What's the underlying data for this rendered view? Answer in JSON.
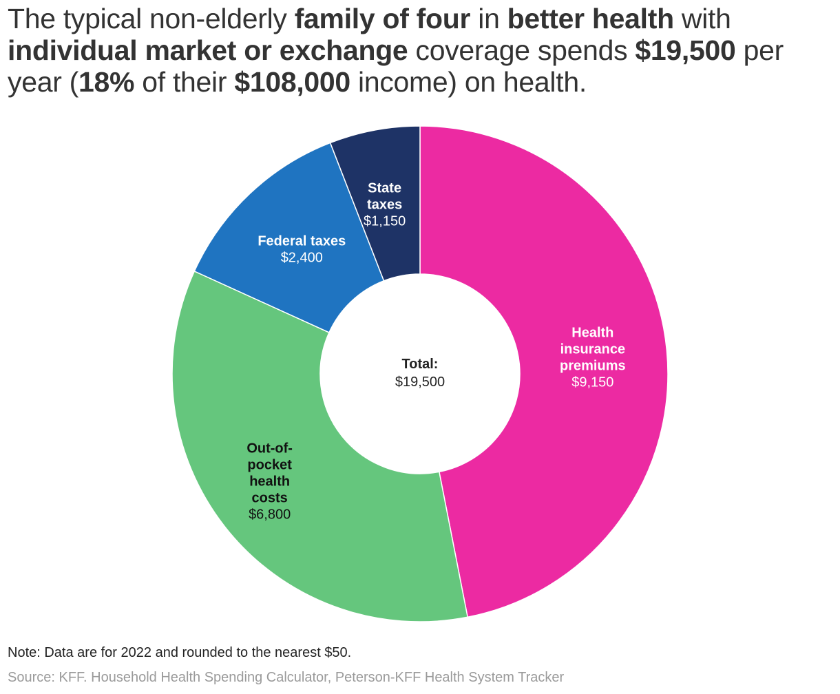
{
  "title": {
    "segments": [
      {
        "text": "The typical non-elderly ",
        "bold": false
      },
      {
        "text": "family of four",
        "bold": true
      },
      {
        "text": " in ",
        "bold": false
      },
      {
        "text": "better health",
        "bold": true
      },
      {
        "text": " with ",
        "bold": false
      },
      {
        "text": "individual market or exchange",
        "bold": true
      },
      {
        "text": " coverage spends ",
        "bold": false
      },
      {
        "text": "$19,500",
        "bold": true
      },
      {
        "text": " per year (",
        "bold": false
      },
      {
        "text": "18%",
        "bold": true
      },
      {
        "text": " of their ",
        "bold": false
      },
      {
        "text": "$108,000",
        "bold": true
      },
      {
        "text": " income) on health.",
        "bold": false
      }
    ]
  },
  "chart_data": {
    "type": "pie",
    "donut": true,
    "center_label": {
      "title": "Total:",
      "value": "$19,500"
    },
    "slices": [
      {
        "label_lines": [
          "Health",
          "insurance",
          "premiums"
        ],
        "value": 9150,
        "display": "$9,150",
        "color": "#ec2aa2",
        "text_color": "#ffffff"
      },
      {
        "label_lines": [
          "Out-of-",
          "pocket",
          "health",
          "costs"
        ],
        "value": 6800,
        "display": "$6,800",
        "color": "#65c67d",
        "text_color": "#111111"
      },
      {
        "label_lines": [
          "Federal taxes"
        ],
        "value": 2400,
        "display": "$2,400",
        "color": "#1f74c1",
        "text_color": "#ffffff"
      },
      {
        "label_lines": [
          "State",
          "taxes"
        ],
        "value": 1150,
        "display": "$1,150",
        "color": "#1e3366",
        "text_color": "#ffffff"
      }
    ]
  },
  "note": "Note: Data are for 2022 and rounded to the nearest $50.",
  "source": "Source: KFF. Household Health Spending Calculator, Peterson-KFF Health System Tracker"
}
